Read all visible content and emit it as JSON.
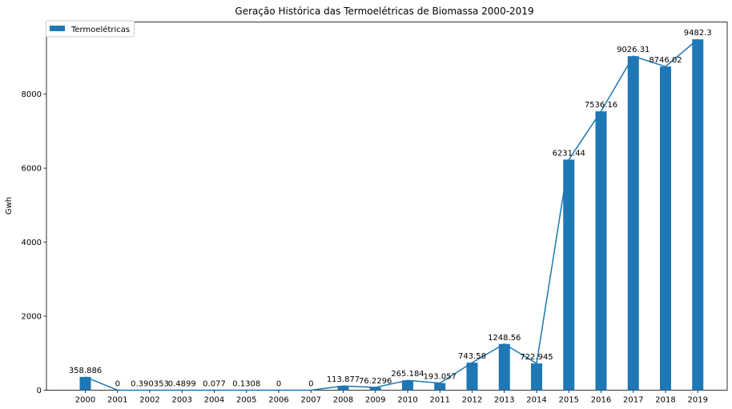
{
  "chart_data": {
    "type": "bar",
    "title": "Geração Histórica das Termoelétricas de Biomassa 2000-2019",
    "xlabel": "",
    "ylabel": "Gwh",
    "categories": [
      "2000",
      "2001",
      "2002",
      "2003",
      "2004",
      "2005",
      "2006",
      "2007",
      "2008",
      "2009",
      "2010",
      "2011",
      "2012",
      "2013",
      "2014",
      "2015",
      "2016",
      "2017",
      "2018",
      "2019"
    ],
    "series": [
      {
        "name": "Termoelétricas",
        "values": [
          358.886,
          0,
          0.390353,
          0.4899,
          0.077,
          0.1308,
          0,
          0,
          113.877,
          76.2296,
          265.184,
          193.057,
          743.58,
          1248.56,
          722.945,
          6231.44,
          7536.16,
          9026.31,
          8746.02,
          9482.3
        ],
        "data_labels": [
          "358.886",
          "0",
          "0.390353",
          "0.4899",
          "0.077",
          "0.1308",
          "0",
          "0",
          "113.877",
          "76.2296",
          "265.184",
          "193.057",
          "743.58",
          "1248.56",
          "722.945",
          "6231.44",
          "7536.16",
          "9026.31",
          "8746.02",
          "9482.3"
        ]
      }
    ],
    "line_overlay": true,
    "ylim": [
      0,
      9950
    ],
    "yticks": [
      0,
      2000,
      4000,
      6000,
      8000
    ],
    "grid": false,
    "legend": "top-left",
    "colors": {
      "bar": "#1f77b4",
      "line": "#1f77b4"
    }
  }
}
